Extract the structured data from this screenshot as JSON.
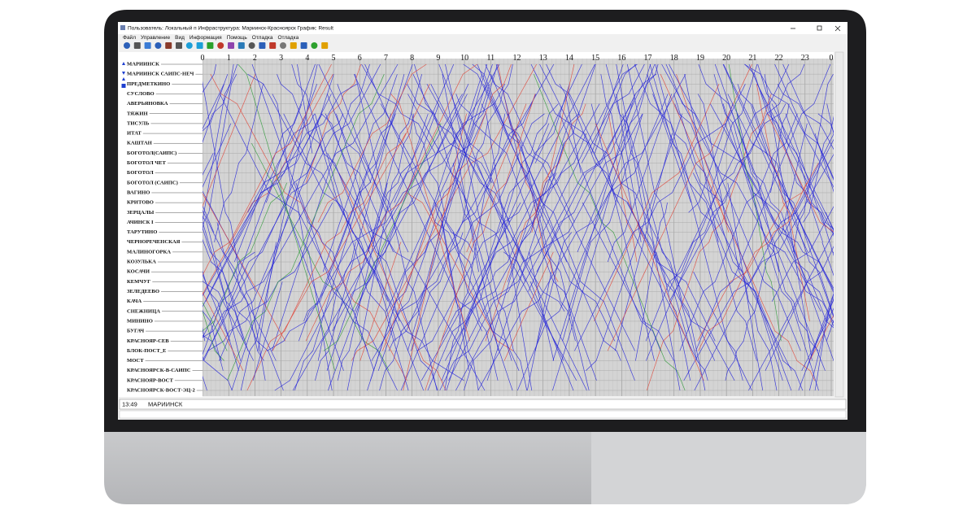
{
  "window": {
    "title": "Пользователь: Локальный п  Инфраструктура: Мариинск-Красноярск График: Result",
    "menu": [
      "Файл",
      "Управление",
      "Вид",
      "Информация",
      "Помощь",
      "Отладка",
      "Отладка"
    ]
  },
  "stations": [
    "МАРИИНСК",
    "МАРИИНСК САИПС-НЕЧ",
    "ПРЕДМЕТКИНО",
    "СУСЛОВО",
    "АВЕРЬЯНОВКА",
    "ТЯЖИН",
    "ТИСУЛЬ",
    "ИТАТ",
    "КАШТАН",
    "БОГОТОЛ(САИПС)",
    "БОГОТОЛ ЧЕТ",
    "БОГОТОЛ",
    "БОГОТОЛ (САИПС)",
    "ВАГИНО",
    "КРИТОВО",
    "ЗЕРЦАЛЫ",
    "АЧИНСК I",
    "ТАРУТИНО",
    "ЧЕРНОРЕЧЕНСКАЯ",
    "МАЛИНОГОРКА",
    "КОЗУЛЬКА",
    "КОСАЧИ",
    "КЕМЧУГ",
    "ЗЕЛЕДЕЕВО",
    "КАЧА",
    "СНЕЖНИЦА",
    "МИНИНО",
    "БУГАЧ",
    "КРАСНОЯР-СЕВ",
    "БЛОК-ПОСТ_Е",
    "МОСТ",
    "КРАСНОЯРСК-В-САИПС",
    "КРАСНОЯР-ВОСТ",
    "КРАСНОЯРСК-ВОСТ-ЭЦ-2"
  ],
  "hours": [
    "0",
    "1",
    "2",
    "3",
    "4",
    "5",
    "6",
    "7",
    "8",
    "9",
    "10",
    "11",
    "12",
    "13",
    "14",
    "15",
    "16",
    "17",
    "18",
    "19",
    "20",
    "21",
    "22",
    "23",
    "0"
  ],
  "status": {
    "time": "13:49",
    "station": "МАРИИНСК"
  }
}
